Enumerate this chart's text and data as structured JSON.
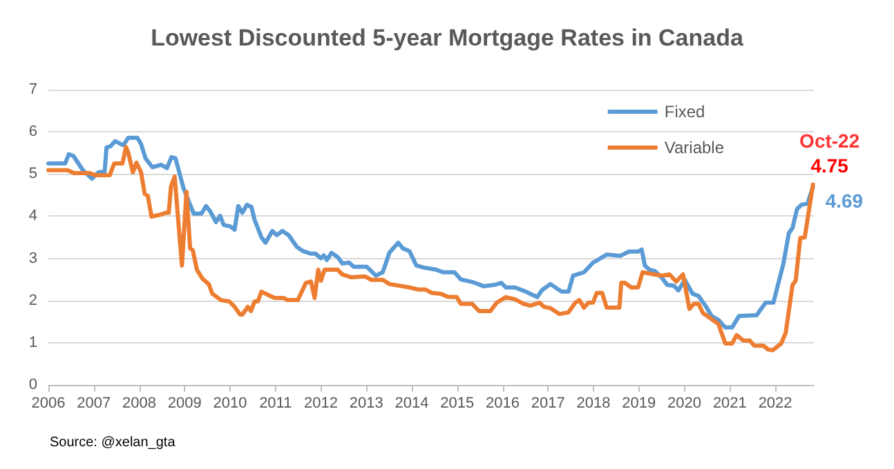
{
  "chart_data": {
    "type": "line",
    "title": "Lowest Discounted 5-year Mortgage Rates in Canada",
    "xlim": [
      2006,
      2022.85
    ],
    "xticks": [
      2006,
      2007,
      2008,
      2009,
      2010,
      2011,
      2012,
      2013,
      2014,
      2015,
      2016,
      2017,
      2018,
      2019,
      2020,
      2021,
      2022
    ],
    "ylim": [
      0,
      7
    ],
    "yticks": [
      0,
      1,
      2,
      3,
      4,
      5,
      6,
      7
    ],
    "grid": "y",
    "legend": "top right",
    "marker": "none",
    "line_style": "solid",
    "annotations": [
      {
        "text": "Oct-22",
        "x": 2022.83,
        "y": 4.75
      },
      "Source: @xelan_gta"
    ],
    "series": [
      {
        "name": "Fixed",
        "color": "#5b9bd5",
        "x": [
          2006,
          2006.37,
          2006.45,
          2006.55,
          2006.76,
          2006.96,
          2007.1,
          2007.24,
          2007.28,
          2007.37,
          2007.47,
          2007.65,
          2007.76,
          2007.96,
          2008.04,
          2008.14,
          2008.29,
          2008.48,
          2008.61,
          2008.71,
          2008.8,
          2008.97,
          2009.12,
          2009.2,
          2009.37,
          2009.47,
          2009.56,
          2009.69,
          2009.78,
          2009.86,
          2010,
          2010.1,
          2010.18,
          2010.27,
          2010.37,
          2010.47,
          2010.54,
          2010.69,
          2010.78,
          2010.93,
          2011.03,
          2011.15,
          2011.29,
          2011.47,
          2011.61,
          2011.78,
          2011.88,
          2012,
          2012.06,
          2012.13,
          2012.23,
          2012.37,
          2012.47,
          2012.62,
          2012.72,
          2013.01,
          2013.21,
          2013.36,
          2013.51,
          2013.7,
          2013.8,
          2013.95,
          2014.1,
          2014.27,
          2014.54,
          2014.69,
          2014.94,
          2015.08,
          2015.33,
          2015.58,
          2015.82,
          2015.97,
          2016.07,
          2016.27,
          2016.51,
          2016.76,
          2016.86,
          2017.05,
          2017.3,
          2017.45,
          2017.55,
          2017.79,
          2017.99,
          2018.09,
          2018.29,
          2018.59,
          2018.78,
          2018.98,
          2019.06,
          2019.13,
          2019.23,
          2019.35,
          2019.52,
          2019.62,
          2019.77,
          2019.87,
          2020.01,
          2020.18,
          2020.31,
          2020.48,
          2020.6,
          2020.75,
          2020.9,
          2021.05,
          2021.2,
          2021.59,
          2021.79,
          2021.96,
          2022.18,
          2022.3,
          2022.38,
          2022.48,
          2022.58,
          2022.71,
          2022.83
        ],
        "values": [
          5.25,
          5.25,
          5.47,
          5.43,
          5.09,
          4.89,
          5.04,
          5.06,
          5.63,
          5.66,
          5.78,
          5.68,
          5.86,
          5.86,
          5.71,
          5.37,
          5.16,
          5.22,
          5.14,
          5.4,
          5.37,
          4.68,
          4.27,
          4.06,
          4.06,
          4.24,
          4.12,
          3.86,
          4.01,
          3.79,
          3.76,
          3.68,
          4.24,
          4.08,
          4.27,
          4.22,
          3.91,
          3.5,
          3.37,
          3.65,
          3.55,
          3.65,
          3.55,
          3.27,
          3.17,
          3.11,
          3.11,
          3.0,
          3.07,
          2.96,
          3.13,
          3.03,
          2.88,
          2.9,
          2.8,
          2.8,
          2.59,
          2.67,
          3.14,
          3.37,
          3.24,
          3.17,
          2.83,
          2.78,
          2.73,
          2.67,
          2.67,
          2.5,
          2.44,
          2.34,
          2.37,
          2.42,
          2.31,
          2.31,
          2.21,
          2.08,
          2.24,
          2.39,
          2.21,
          2.21,
          2.59,
          2.67,
          2.9,
          2.96,
          3.09,
          3.06,
          3.16,
          3.16,
          3.21,
          2.83,
          2.73,
          2.7,
          2.52,
          2.37,
          2.35,
          2.24,
          2.49,
          2.16,
          2.11,
          1.85,
          1.63,
          1.54,
          1.36,
          1.36,
          1.63,
          1.65,
          1.95,
          1.95,
          2.88,
          3.6,
          3.72,
          4.17,
          4.27,
          4.3,
          4.69
        ],
        "value_labels": [
          null,
          null,
          null,
          null,
          null,
          null,
          null,
          null,
          null,
          null,
          null,
          null,
          null,
          null,
          null,
          null,
          null,
          null,
          null,
          null,
          null,
          null,
          null,
          null,
          null,
          null,
          null,
          null,
          null,
          null,
          null,
          null,
          null,
          null,
          null,
          null,
          null,
          null,
          null,
          null,
          null,
          null,
          null,
          null,
          null,
          null,
          null,
          null,
          null,
          null,
          null,
          null,
          null,
          null,
          null,
          null,
          null,
          null,
          null,
          null,
          null,
          null,
          null,
          null,
          null,
          null,
          null,
          null,
          null,
          null,
          null,
          null,
          null,
          null,
          null,
          null,
          null,
          null,
          null,
          null,
          null,
          null,
          null,
          null,
          null,
          null,
          null,
          null,
          null,
          null,
          null,
          null,
          null,
          null,
          null,
          null,
          null,
          null,
          null,
          null,
          null,
          null,
          null,
          null,
          null,
          null,
          null,
          null,
          null,
          null,
          null,
          null,
          null,
          null,
          "4.69"
        ]
      },
      {
        "name": "Variable",
        "color": "#ed7d31",
        "x": [
          2006,
          2006.42,
          2006.57,
          2006.91,
          2007.04,
          2007.35,
          2007.45,
          2007.63,
          2007.71,
          2007.76,
          2007.86,
          2007.94,
          2008.04,
          2008.12,
          2008.19,
          2008.27,
          2008.48,
          2008.58,
          2008.65,
          2008.7,
          2008.78,
          2008.94,
          2009.04,
          2009.12,
          2009.18,
          2009.27,
          2009.39,
          2009.53,
          2009.61,
          2009.8,
          2009.98,
          2010.1,
          2010.22,
          2010.27,
          2010.39,
          2010.46,
          2010.54,
          2010.61,
          2010.69,
          2010.88,
          2010.98,
          2011.18,
          2011.27,
          2011.49,
          2011.67,
          2011.78,
          2011.86,
          2011.94,
          2012,
          2012.08,
          2012.37,
          2012.47,
          2012.67,
          2012.97,
          2013.11,
          2013.36,
          2013.51,
          2013.95,
          2014.15,
          2014.3,
          2014.44,
          2014.64,
          2014.79,
          2014.99,
          2015.08,
          2015.33,
          2015.48,
          2015.73,
          2015.87,
          2016.07,
          2016.27,
          2016.46,
          2016.61,
          2016.81,
          2016.91,
          2017.05,
          2017.25,
          2017.45,
          2017.6,
          2017.69,
          2017.79,
          2017.89,
          2017.99,
          2018.07,
          2018.19,
          2018.29,
          2018.57,
          2018.61,
          2018.69,
          2018.83,
          2018.98,
          2019.08,
          2019.33,
          2019.52,
          2019.67,
          2019.82,
          2019.97,
          2020.11,
          2020.21,
          2020.31,
          2020.41,
          2020.56,
          2020.75,
          2020.9,
          2021.05,
          2021.15,
          2021.3,
          2021.44,
          2021.54,
          2021.74,
          2021.84,
          2021.94,
          2022.13,
          2022.23,
          2022.38,
          2022.45,
          2022.55,
          2022.65,
          2022.83
        ],
        "values": [
          5.09,
          5.09,
          5.02,
          5.02,
          4.97,
          4.97,
          5.25,
          5.25,
          5.64,
          5.5,
          5.04,
          5.27,
          5.04,
          4.53,
          4.48,
          3.99,
          4.04,
          4.08,
          4.08,
          4.71,
          4.94,
          2.83,
          4.58,
          3.24,
          3.19,
          2.73,
          2.52,
          2.39,
          2.16,
          2.01,
          1.98,
          1.85,
          1.67,
          1.67,
          1.85,
          1.75,
          1.98,
          1.98,
          2.21,
          2.11,
          2.06,
          2.06,
          2.01,
          2.01,
          2.42,
          2.45,
          2.06,
          2.73,
          2.47,
          2.73,
          2.73,
          2.62,
          2.55,
          2.57,
          2.49,
          2.49,
          2.39,
          2.31,
          2.26,
          2.26,
          2.18,
          2.16,
          2.09,
          2.08,
          1.92,
          1.92,
          1.75,
          1.75,
          1.95,
          2.08,
          2.03,
          1.92,
          1.88,
          1.95,
          1.85,
          1.82,
          1.68,
          1.72,
          1.95,
          2.01,
          1.83,
          1.95,
          1.95,
          2.18,
          2.18,
          1.83,
          1.83,
          2.42,
          2.42,
          2.31,
          2.31,
          2.67,
          2.62,
          2.59,
          2.62,
          2.45,
          2.62,
          1.8,
          1.92,
          1.92,
          1.7,
          1.59,
          1.44,
          0.98,
          0.98,
          1.18,
          1.05,
          1.05,
          0.93,
          0.93,
          0.84,
          0.82,
          0.98,
          1.23,
          2.37,
          2.47,
          3.48,
          3.5,
          4.75
        ],
        "value_labels": [
          null,
          null,
          null,
          null,
          null,
          null,
          null,
          null,
          null,
          null,
          null,
          null,
          null,
          null,
          null,
          null,
          null,
          null,
          null,
          null,
          null,
          null,
          null,
          null,
          null,
          null,
          null,
          null,
          null,
          null,
          null,
          null,
          null,
          null,
          null,
          null,
          null,
          null,
          null,
          null,
          null,
          null,
          null,
          null,
          null,
          null,
          null,
          null,
          null,
          null,
          null,
          null,
          null,
          null,
          null,
          null,
          null,
          null,
          null,
          null,
          null,
          null,
          null,
          null,
          null,
          null,
          null,
          null,
          null,
          null,
          null,
          null,
          null,
          null,
          null,
          null,
          null,
          null,
          null,
          null,
          null,
          null,
          null,
          null,
          null,
          null,
          null,
          null,
          null,
          null,
          null,
          null,
          null,
          null,
          null,
          null,
          null,
          null,
          null,
          null,
          null,
          null,
          null,
          null,
          null,
          null,
          null,
          null,
          null,
          null,
          null,
          null,
          null,
          null,
          null,
          null,
          null,
          null,
          "4.75"
        ]
      }
    ]
  }
}
